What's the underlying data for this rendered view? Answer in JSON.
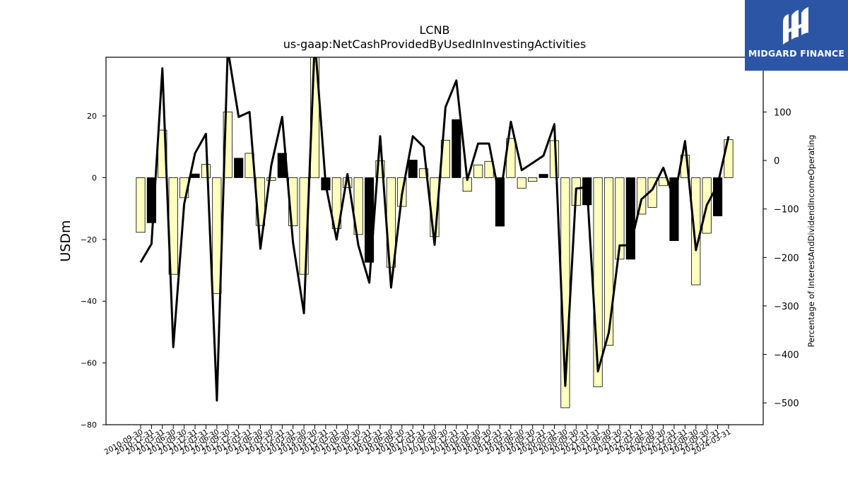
{
  "chart_data": {
    "type": "bar",
    "title": "LCNB",
    "subtitle": "us-gaap:NetCashProvidedByUsedInInvestingActivities",
    "ylabel": "USDm",
    "y2label": "Percentage of InterestAndDividendIncomeOperating",
    "ylim": [
      -80,
      39
    ],
    "y2lim": [
      -545,
      213
    ],
    "yticks": [
      -80,
      -60,
      -40,
      -20,
      0,
      20
    ],
    "y2ticks": [
      -500,
      -400,
      -300,
      -200,
      -100,
      0,
      100
    ],
    "categories": [
      "2010-09-30",
      "2010-12-31",
      "2011-03-31",
      "2011-06-30",
      "2011-09-30",
      "2011-12-31",
      "2012-03-31",
      "2012-06-30",
      "2012-09-30",
      "2012-12-31",
      "2013-03-31",
      "2013-06-30",
      "2013-09-30",
      "2013-12-31",
      "2014-03-31",
      "2014-06-30",
      "2014-09-30",
      "2014-12-31",
      "2015-03-31",
      "2015-06-30",
      "2015-09-30",
      "2015-12-31",
      "2016-03-31",
      "2016-06-30",
      "2016-09-30",
      "2016-12-31",
      "2017-03-31",
      "2017-06-30",
      "2017-09-30",
      "2017-12-31",
      "2018-03-31",
      "2018-06-30",
      "2018-09-30",
      "2018-12-31",
      "2019-03-31",
      "2019-06-30",
      "2019-09-30",
      "2019-12-31",
      "2020-03-31",
      "2020-06-30",
      "2020-09-30",
      "2020-12-31",
      "2021-03-31",
      "2021-06-30",
      "2021-09-30",
      "2021-12-31",
      "2022-03-31",
      "2022-06-30",
      "2022-09-30",
      "2022-12-31",
      "2023-03-31",
      "2023-06-30",
      "2023-09-30",
      "2023-12-31",
      "2024-03-31"
    ],
    "series": [
      {
        "values": [
          -17.7,
          -14.6,
          15.4,
          -31.3,
          -6.5,
          1.2,
          4.3,
          -37.5,
          21.3,
          6.3,
          7.9,
          -15.5,
          -0.9,
          7.9,
          -15.6,
          -31.3,
          40.0,
          -4.0,
          -16.5,
          -3.2,
          -18.4,
          -27.4,
          5.5,
          -29.0,
          -9.3,
          5.7,
          2.9,
          -19.1,
          12.1,
          18.8,
          -4.4,
          4.1,
          5.3,
          -15.7,
          12.7,
          -3.4,
          -1.2,
          1.1,
          12.0,
          -74.5,
          -9.0,
          -8.8,
          -67.7,
          -54.3,
          -26.4,
          -26.4,
          -11.8,
          -9.6,
          -2.6,
          -20.4,
          7.3,
          -34.7,
          -18.0,
          -12.4,
          12.3
        ],
        "colors": [
          "y",
          "b",
          "y",
          "y",
          "y",
          "b",
          "y",
          "y",
          "y",
          "b",
          "y",
          "y",
          "y",
          "b",
          "y",
          "y",
          "y",
          "b",
          "y",
          "y",
          "y",
          "b",
          "y",
          "y",
          "y",
          "b",
          "y",
          "y",
          "y",
          "b",
          "y",
          "y",
          "y",
          "b",
          "y",
          "y",
          "y",
          "b",
          "y",
          "y",
          "y",
          "b",
          "y",
          "y",
          "y",
          "b",
          "y",
          "y",
          "y",
          "b",
          "y",
          "y",
          "y",
          "b",
          "y"
        ]
      },
      {
        "type": "line",
        "axis": "right",
        "values": [
          -210,
          -172,
          190,
          -385,
          -90,
          15,
          55,
          -495,
          230,
          90,
          100,
          -182,
          -10,
          90,
          -170,
          -315,
          250,
          -50,
          -163,
          -28,
          -175,
          -252,
          50,
          -262,
          -70,
          50,
          28,
          -174,
          110,
          165,
          -40,
          35,
          35,
          -80,
          80,
          -20,
          -5,
          10,
          75,
          -465,
          -58,
          -55,
          -435,
          -355,
          -175,
          -175,
          -80,
          -60,
          -15,
          -80,
          40,
          -185,
          -92,
          -50,
          50
        ]
      }
    ],
    "colors": {
      "y": "#ffffc0",
      "b": "#000000",
      "line": "#000000",
      "logo_bg": "#2d55a6"
    },
    "grid": false,
    "legend": "none"
  },
  "logo": {
    "text": "MIDGARD FINANCE",
    "icon": "midgard-logo-icon"
  }
}
